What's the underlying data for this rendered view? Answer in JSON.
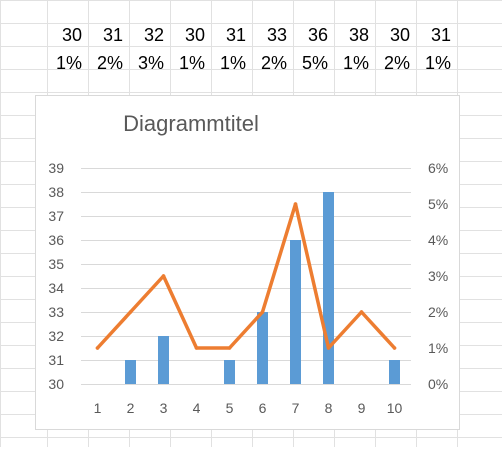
{
  "sheet": {
    "row1": [
      "30",
      "31",
      "32",
      "30",
      "31",
      "33",
      "36",
      "38",
      "30",
      "31"
    ],
    "row2": [
      "1%",
      "2%",
      "3%",
      "1%",
      "1%",
      "2%",
      "5%",
      "1%",
      "2%",
      "1%"
    ]
  },
  "chart_data": {
    "type": "bar",
    "title": "Diagrammtitel",
    "categories": [
      "1",
      "2",
      "3",
      "4",
      "5",
      "6",
      "7",
      "8",
      "9",
      "10"
    ],
    "series": [
      {
        "type": "bar",
        "axis": "left",
        "values": [
          30,
          31,
          32,
          30,
          31,
          33,
          36,
          38,
          30,
          31
        ],
        "color": "#5b9bd5"
      },
      {
        "type": "line",
        "axis": "right",
        "values": [
          0.01,
          0.02,
          0.03,
          0.01,
          0.01,
          0.02,
          0.05,
          0.01,
          0.02,
          0.01
        ],
        "color": "#ed7d31"
      }
    ],
    "y_left": {
      "min": 30,
      "max": 39,
      "ticks": [
        "30",
        "31",
        "32",
        "33",
        "34",
        "35",
        "36",
        "37",
        "38",
        "39"
      ]
    },
    "y_right": {
      "min": 0,
      "max": 0.06,
      "ticks": [
        "0%",
        "1%",
        "2%",
        "3%",
        "4%",
        "5%",
        "6%"
      ]
    },
    "grid": true,
    "legend": "none",
    "gridline_color": "#d9d9d9",
    "axis_label_color": "#595959",
    "title_color": "#595959"
  }
}
